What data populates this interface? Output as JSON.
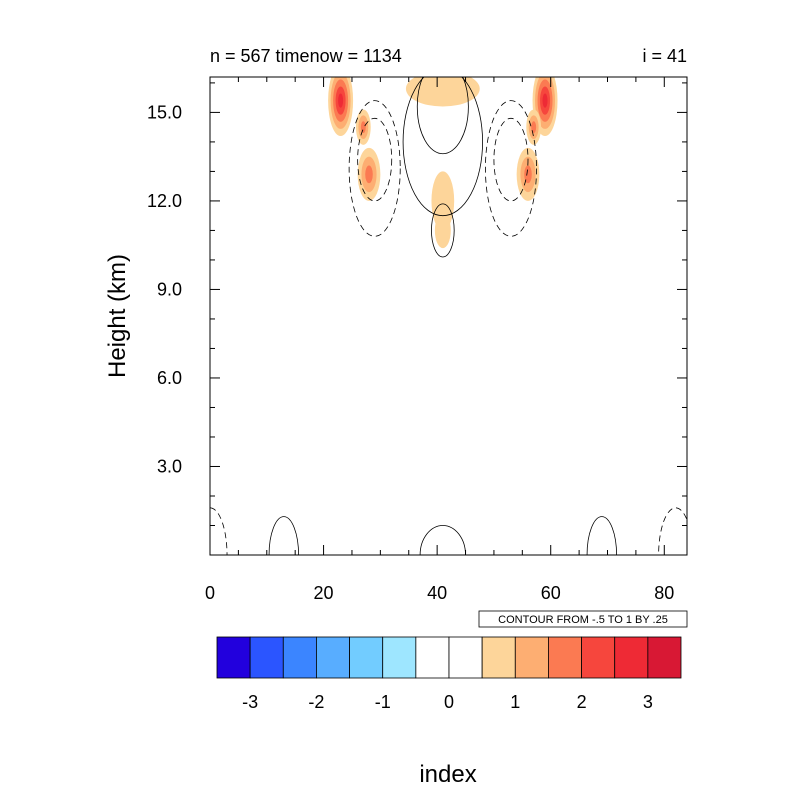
{
  "chart_data": {
    "type": "heatmap",
    "title_left": "n = 567 timenow = 1134",
    "title_right": "i = 41",
    "xlabel": "index",
    "ylabel": "Height (km)",
    "xlim": [
      0,
      84
    ],
    "ylim": [
      0,
      16.2
    ],
    "x_ticks": [
      0,
      20,
      40,
      60,
      80
    ],
    "y_ticks": [
      3.0,
      6.0,
      9.0,
      12.0,
      15.0
    ],
    "y_tick_labels": [
      "3.0",
      "6.0",
      "9.0",
      "12.0",
      "15.0"
    ],
    "contour_info": "CONTOUR FROM -.5 TO 1 BY .25",
    "colorbar": {
      "colors": [
        "#2200dd",
        "#2b55ff",
        "#3b85ff",
        "#58adff",
        "#72ccff",
        "#9ee6ff",
        "#ffffff",
        "#ffffff",
        "#fdd59a",
        "#fdae72",
        "#fb7a52",
        "#f6463d",
        "#ee2a35",
        "#d81834"
      ],
      "tick_values": [
        -3,
        -2,
        -1,
        0,
        1,
        2,
        3
      ],
      "tick_labels": [
        "-3",
        "-2",
        "-1",
        "0",
        "1",
        "2",
        "3"
      ]
    },
    "shaded_features": [
      {
        "x": 23,
        "y": 15.4,
        "level": 3,
        "rx": 2.2,
        "ry": 1.2
      },
      {
        "x": 59,
        "y": 15.4,
        "level": 3,
        "rx": 2.2,
        "ry": 1.2
      },
      {
        "x": 28,
        "y": 12.9,
        "level": 2,
        "rx": 2.0,
        "ry": 0.9
      },
      {
        "x": 56,
        "y": 12.9,
        "level": 2,
        "rx": 2.0,
        "ry": 0.9
      },
      {
        "x": 27,
        "y": 14.5,
        "level": 2,
        "rx": 1.3,
        "ry": 0.6
      },
      {
        "x": 57,
        "y": 14.5,
        "level": 2,
        "rx": 1.3,
        "ry": 0.6
      },
      {
        "x": 41,
        "y": 15.8,
        "level": 1,
        "rx": 6.5,
        "ry": 0.6
      },
      {
        "x": 41,
        "y": 12.0,
        "level": 1,
        "rx": 2.0,
        "ry": 1.0
      },
      {
        "x": 41,
        "y": 11.0,
        "level": 1,
        "rx": 1.4,
        "ry": 0.6
      }
    ],
    "solid_contours": [
      {
        "x": 41,
        "y": 14.0,
        "rx": 7.0,
        "ry": 2.5
      },
      {
        "x": 41,
        "y": 15.2,
        "rx": 4.5,
        "ry": 1.6
      },
      {
        "x": 41,
        "y": 11.0,
        "rx": 2.0,
        "ry": 0.9
      },
      {
        "x": 41,
        "y": 0.0,
        "rx": 4.0,
        "ry": 1.0
      },
      {
        "x": 13,
        "y": 0.0,
        "rx": 2.6,
        "ry": 1.3
      },
      {
        "x": 69,
        "y": 0.0,
        "rx": 2.6,
        "ry": 1.3
      }
    ],
    "dashed_contours": [
      {
        "x": 29,
        "y": 13.1,
        "rx": 4.5,
        "ry": 2.3
      },
      {
        "x": 29,
        "y": 13.4,
        "rx": 3.0,
        "ry": 1.4
      },
      {
        "x": 53,
        "y": 13.1,
        "rx": 4.5,
        "ry": 2.3
      },
      {
        "x": 53,
        "y": 13.4,
        "rx": 3.0,
        "ry": 1.4
      },
      {
        "x": 0,
        "y": 0.0,
        "rx": 3.0,
        "ry": 1.6
      },
      {
        "x": 82,
        "y": 0.0,
        "rx": 3.0,
        "ry": 1.6
      }
    ]
  }
}
